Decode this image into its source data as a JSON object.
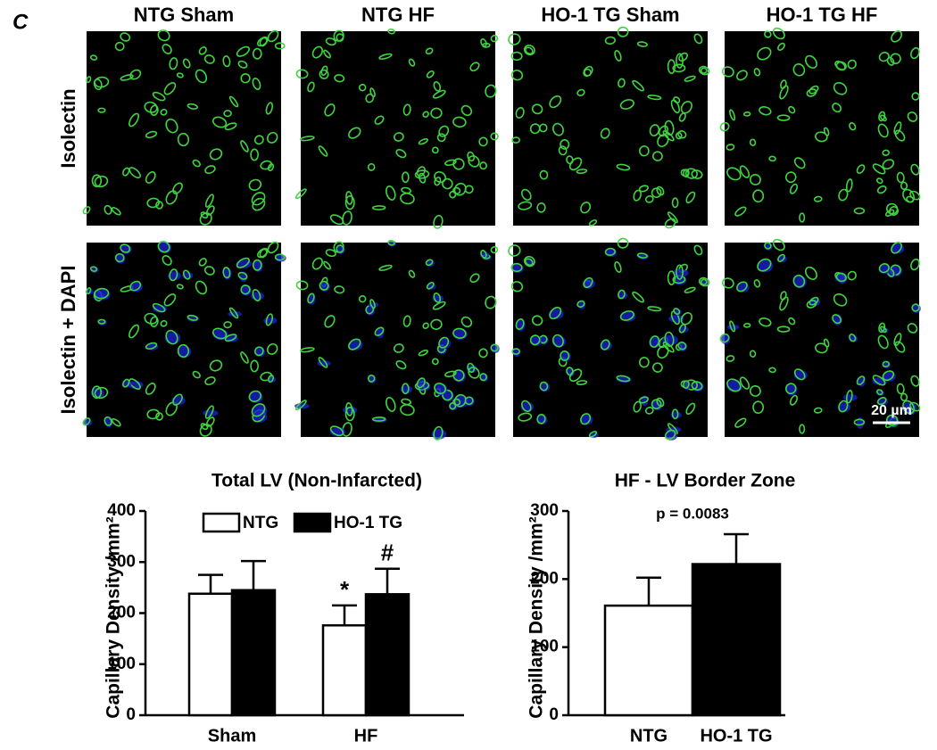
{
  "figure": {
    "panel_label": "C",
    "columns": [
      "NTG Sham",
      "NTG HF",
      "HO-1 TG Sham",
      "HO-1 TG HF"
    ],
    "rows": [
      "Isolectin",
      "Isolectin + DAPI"
    ],
    "scale_bar": "20 µm"
  },
  "chart_data": [
    {
      "type": "bar",
      "title": "Total LV (Non-Infarcted)",
      "ylabel": "Capillary Density /mm²",
      "categories": [
        "Sham",
        "HF"
      ],
      "series": [
        {
          "name": "NTG",
          "color": "#ffffff",
          "values": [
            238,
            176
          ],
          "errors": [
            37,
            39
          ],
          "annotations": [
            null,
            "*"
          ]
        },
        {
          "name": "HO-1 TG",
          "color": "#000000",
          "values": [
            245,
            237
          ],
          "errors": [
            57,
            50
          ],
          "annotations": [
            null,
            "#"
          ]
        }
      ],
      "ylim": [
        0,
        400
      ],
      "yticks": [
        0,
        100,
        200,
        300,
        400
      ],
      "legend": "top"
    },
    {
      "type": "bar",
      "title": "HF - LV Border Zone",
      "ylabel": "Capillary Density /mm²",
      "categories": [
        "NTG",
        "HO-1 TG"
      ],
      "values": [
        161,
        222
      ],
      "errors": [
        41,
        44
      ],
      "colors": [
        "#ffffff",
        "#000000"
      ],
      "annotation": "p = 0.0083",
      "ylim": [
        0,
        300
      ],
      "yticks": [
        0,
        100,
        200,
        300
      ]
    }
  ]
}
